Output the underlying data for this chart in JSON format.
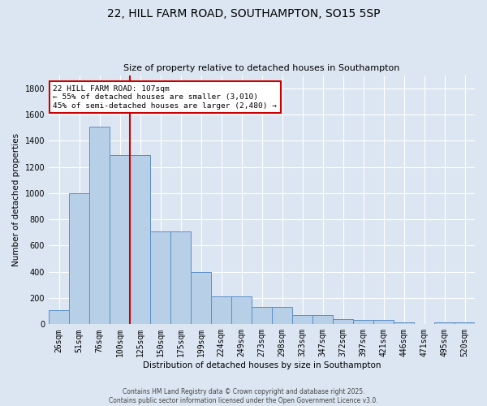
{
  "title_line1": "22, HILL FARM ROAD, SOUTHAMPTON, SO15 5SP",
  "title_line2": "Size of property relative to detached houses in Southampton",
  "xlabel": "Distribution of detached houses by size in Southampton",
  "ylabel": "Number of detached properties",
  "categories": [
    "26sqm",
    "51sqm",
    "76sqm",
    "100sqm",
    "125sqm",
    "150sqm",
    "175sqm",
    "199sqm",
    "224sqm",
    "249sqm",
    "273sqm",
    "298sqm",
    "323sqm",
    "347sqm",
    "372sqm",
    "397sqm",
    "421sqm",
    "446sqm",
    "471sqm",
    "495sqm",
    "520sqm"
  ],
  "values": [
    110,
    1000,
    1510,
    1290,
    1290,
    710,
    710,
    400,
    215,
    215,
    135,
    135,
    70,
    70,
    40,
    30,
    30,
    15,
    5,
    15,
    15
  ],
  "bar_color": "#b8cfe8",
  "bar_edge_color": "#5b8ec4",
  "background_color": "#dce6f2",
  "grid_color": "#ffffff",
  "annotation_text": "22 HILL FARM ROAD: 107sqm\n← 55% of detached houses are smaller (3,010)\n45% of semi-detached houses are larger (2,480) →",
  "vline_color": "#cc0000",
  "annotation_box_color": "#ffffff",
  "annotation_box_edge": "#cc0000",
  "ylim": [
    0,
    1900
  ],
  "yticks": [
    0,
    200,
    400,
    600,
    800,
    1000,
    1200,
    1400,
    1600,
    1800
  ],
  "footer_line1": "Contains HM Land Registry data © Crown copyright and database right 2025.",
  "footer_line2": "Contains public sector information licensed under the Open Government Licence v3.0."
}
